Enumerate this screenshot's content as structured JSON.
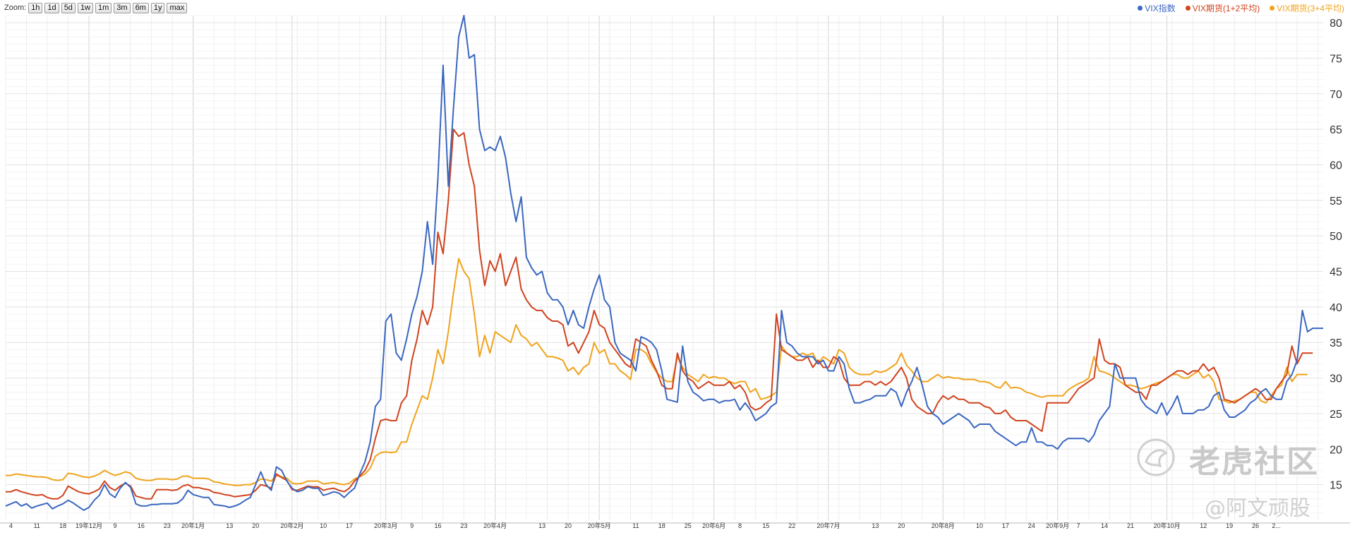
{
  "zoom": {
    "label": "Zoom:",
    "buttons": [
      "1h",
      "1d",
      "5d",
      "1w",
      "1m",
      "3m",
      "6m",
      "1y",
      "max"
    ]
  },
  "watermark": {
    "main": "老虎社区",
    "sub": "@阿文顽股"
  },
  "chart_data": {
    "type": "line",
    "title": "",
    "xlabel": "",
    "ylabel": "",
    "ylim": [
      10,
      81
    ],
    "y_ticks": [
      15,
      20,
      25,
      30,
      35,
      40,
      45,
      50,
      55,
      60,
      65,
      70,
      75,
      80
    ],
    "grid": true,
    "legend_position": "top-right",
    "x_tick_labels": [
      {
        "label": "4",
        "i": 1
      },
      {
        "label": "11",
        "i": 6
      },
      {
        "label": "18",
        "i": 11
      },
      {
        "label": "19年12月",
        "i": 16
      },
      {
        "label": "9",
        "i": 21
      },
      {
        "label": "16",
        "i": 26
      },
      {
        "label": "23",
        "i": 31
      },
      {
        "label": "20年1月",
        "i": 36
      },
      {
        "label": "13",
        "i": 43
      },
      {
        "label": "20",
        "i": 48
      },
      {
        "label": "20年2月",
        "i": 55
      },
      {
        "label": "10",
        "i": 61
      },
      {
        "label": "17",
        "i": 66
      },
      {
        "label": "20年3月",
        "i": 73
      },
      {
        "label": "9",
        "i": 78
      },
      {
        "label": "16",
        "i": 83
      },
      {
        "label": "23",
        "i": 88
      },
      {
        "label": "20年4月",
        "i": 94
      },
      {
        "label": "13",
        "i": 103
      },
      {
        "label": "20",
        "i": 108
      },
      {
        "label": "20年5月",
        "i": 114
      },
      {
        "label": "11",
        "i": 121
      },
      {
        "label": "18",
        "i": 126
      },
      {
        "label": "25",
        "i": 131
      },
      {
        "label": "20年6月",
        "i": 136
      },
      {
        "label": "8",
        "i": 141
      },
      {
        "label": "15",
        "i": 146
      },
      {
        "label": "22",
        "i": 151
      },
      {
        "label": "20年7月",
        "i": 158
      },
      {
        "label": "13",
        "i": 167
      },
      {
        "label": "20",
        "i": 172
      },
      {
        "label": "20年8月",
        "i": 180
      },
      {
        "label": "10",
        "i": 187
      },
      {
        "label": "17",
        "i": 192
      },
      {
        "label": "24",
        "i": 197
      },
      {
        "label": "20年9月",
        "i": 202
      },
      {
        "label": "7",
        "i": 206
      },
      {
        "label": "14",
        "i": 211
      },
      {
        "label": "21",
        "i": 216
      },
      {
        "label": "20年10月",
        "i": 223
      },
      {
        "label": "12",
        "i": 230
      },
      {
        "label": "19",
        "i": 235
      },
      {
        "label": "26",
        "i": 240
      },
      {
        "label": "2...",
        "i": 244
      }
    ],
    "series": [
      {
        "name": "VIX指数",
        "color": "#3a67c0",
        "values": [
          12,
          12.3,
          12.6,
          12,
          12.3,
          11.7,
          12,
          12.2,
          12.4,
          11.6,
          12,
          12.3,
          12.8,
          12.4,
          11.9,
          11.4,
          11.8,
          12.8,
          13.5,
          15,
          13.7,
          13.2,
          14.5,
          15.3,
          14.6,
          12.3,
          12,
          12,
          12.2,
          12.2,
          12.3,
          12.3,
          12.3,
          12.4,
          13,
          14.2,
          13.6,
          13.4,
          13.2,
          13.2,
          12.2,
          12.1,
          12,
          11.8,
          12,
          12.3,
          12.8,
          13.2,
          15,
          16.8,
          15,
          14.2,
          17.5,
          17,
          15.5,
          14.5,
          14,
          14.2,
          14.7,
          14.5,
          14.5,
          13.5,
          13.7,
          14,
          13.8,
          13.2,
          13.9,
          14.5,
          16.5,
          18.2,
          21,
          26,
          27,
          38,
          39,
          33.5,
          32.5,
          35.5,
          39,
          41.5,
          45,
          52,
          46,
          58,
          74,
          57,
          68,
          78,
          81,
          75,
          75.5,
          65,
          62,
          62.5,
          62,
          64,
          61,
          56,
          52,
          55.5,
          47,
          45.5,
          44.5,
          45,
          42,
          41,
          41,
          40,
          37.5,
          39.5,
          37.5,
          37,
          40,
          42.5,
          44.5,
          41,
          40,
          35,
          33.5,
          33,
          32.5,
          31,
          35.8,
          35.5,
          35,
          34,
          31,
          27,
          26.8,
          26.6,
          34.5,
          29.5,
          28,
          27.5,
          26.8,
          27,
          27,
          26.5,
          26.8,
          26.8,
          27,
          25.5,
          26.5,
          25.5,
          24,
          24.5,
          25,
          26,
          26.5,
          39.5,
          35,
          34.5,
          33.5,
          33,
          33,
          33,
          32,
          32.5,
          31,
          31,
          33,
          32,
          28.5,
          26.5,
          26.5,
          26.8,
          27,
          27.5,
          27.5,
          27.5,
          28.5,
          28,
          26,
          28,
          29.5,
          31.5,
          29,
          26,
          25,
          24.5,
          23.5,
          24,
          24.5,
          25,
          24.5,
          24,
          23,
          23.5,
          23.5,
          23.5,
          22.5,
          22,
          21.5,
          21,
          20.5,
          21,
          21,
          23,
          21,
          21,
          20.5,
          20.5,
          20,
          21,
          21.5,
          21.5,
          21.5,
          21.5,
          21,
          22,
          24,
          25,
          26,
          32,
          30,
          30,
          30,
          30,
          27,
          26,
          25.5,
          25,
          26.5,
          24.8,
          26,
          27.5,
          25,
          25,
          25,
          25.5,
          25.5,
          26,
          27.5,
          28,
          25.5,
          24.5,
          24.5,
          25,
          25.5,
          26.5,
          27,
          28,
          28.5,
          27.5,
          27,
          27,
          29.5,
          30.5,
          32.5,
          39.5,
          36.5,
          37,
          37,
          37
        ]
      },
      {
        "name": "VIX期货(1+2平均)",
        "color": "#d0431e",
        "values": [
          14,
          14,
          14.3,
          14,
          13.8,
          13.6,
          13.5,
          13.6,
          13.2,
          13,
          13,
          13.5,
          14.8,
          14.4,
          14,
          13.8,
          13.7,
          14,
          14.4,
          15.5,
          14.6,
          14.2,
          14.8,
          15.2,
          14.8,
          13.4,
          13.2,
          13,
          13,
          14.3,
          14.3,
          14.3,
          14.2,
          14.3,
          14.8,
          15,
          14.6,
          14.6,
          14.4,
          14.3,
          13.9,
          13.8,
          13.6,
          13.5,
          13.3,
          13.4,
          13.5,
          13.6,
          14.2,
          15,
          14.8,
          14.5,
          16.5,
          16,
          15.6,
          14.3,
          14.2,
          14.5,
          14.8,
          14.7,
          14.7,
          14.2,
          14.4,
          14.5,
          14.2,
          14,
          14.5,
          15.5,
          16.2,
          17,
          18.5,
          21.5,
          24,
          24.2,
          24,
          24,
          26.5,
          27.5,
          32.5,
          35.5,
          39.5,
          37.5,
          40,
          50.5,
          47.5,
          55,
          65,
          64,
          64.5,
          60,
          57,
          48,
          43,
          46.5,
          45,
          47.5,
          43,
          45,
          47,
          42.5,
          41,
          40,
          39.5,
          39.5,
          38.5,
          38,
          38,
          37.5,
          34.5,
          35,
          33.5,
          35,
          36.5,
          39.5,
          37.5,
          37,
          35,
          34,
          33,
          32,
          31.5,
          35.5,
          35,
          34.5,
          32.5,
          31,
          29,
          28.5,
          28.5,
          33.5,
          31,
          30,
          29.5,
          28.5,
          29,
          29.5,
          29,
          29,
          29,
          29.5,
          28.5,
          29,
          28,
          26,
          25.5,
          25.8,
          26.5,
          27,
          39,
          34,
          33.5,
          33,
          32.5,
          32.5,
          33,
          31.5,
          32.5,
          31.5,
          31.5,
          33,
          32.5,
          30,
          29,
          29,
          29,
          29.5,
          29.5,
          29,
          29.5,
          29,
          29.5,
          30.5,
          31.5,
          30,
          27,
          26,
          25.5,
          25,
          25,
          26.5,
          27.5,
          27,
          27.5,
          27,
          27,
          26.5,
          26.5,
          26.5,
          26,
          25.8,
          25,
          25,
          25.5,
          24.5,
          24,
          24,
          24,
          23.5,
          23,
          22.5,
          26.5,
          26.5,
          26.5,
          26.5,
          26.5,
          27.5,
          28.5,
          29,
          29.5,
          30,
          35.5,
          32.5,
          32,
          32,
          31.5,
          29,
          28.5,
          28,
          28,
          27,
          29,
          29,
          29.5,
          30,
          30.5,
          31,
          31,
          30.5,
          31,
          31,
          32,
          31,
          31.5,
          30,
          27,
          26.8,
          26.5,
          27,
          27.5,
          28,
          28.5,
          28,
          27,
          27,
          28.5,
          29.5,
          30.5,
          34.5,
          32,
          33.5,
          33.5,
          33.5
        ]
      },
      {
        "name": "VIX期货(3+4平均)",
        "color": "#f0a31c",
        "values": [
          16.3,
          16.3,
          16.5,
          16.4,
          16.3,
          16.2,
          16.1,
          16.1,
          16,
          15.7,
          15.6,
          15.7,
          16.6,
          16.5,
          16.3,
          16.1,
          16,
          16.2,
          16.5,
          17,
          16.6,
          16.3,
          16.5,
          16.8,
          16.6,
          15.9,
          15.7,
          15.6,
          15.6,
          15.8,
          15.8,
          15.8,
          15.7,
          15.8,
          16.2,
          16.2,
          15.9,
          15.9,
          15.9,
          15.8,
          15.4,
          15.3,
          15.1,
          15,
          14.9,
          14.9,
          15,
          15,
          15.3,
          15.8,
          15.7,
          15.5,
          16.3,
          16.1,
          15.9,
          15.2,
          15.1,
          15.2,
          15.5,
          15.5,
          15.5,
          15.1,
          15.2,
          15.3,
          15.1,
          15,
          15.2,
          15.8,
          16.1,
          16.5,
          17.3,
          19,
          19.5,
          19.6,
          19.5,
          19.6,
          21,
          21,
          23.5,
          25.5,
          27.5,
          27,
          30,
          34,
          32,
          36.5,
          42,
          46.8,
          45,
          44,
          39,
          33,
          36,
          33.5,
          36.5,
          36,
          35.5,
          35,
          37.5,
          36,
          35.5,
          34.5,
          35,
          34,
          33,
          33,
          32.8,
          32.5,
          31,
          31.5,
          30.5,
          31.5,
          32,
          35,
          33.5,
          34,
          32,
          32,
          31,
          30.5,
          29.8,
          34,
          34,
          33.5,
          32,
          30.8,
          30,
          29.5,
          29.5,
          33,
          31.5,
          30.5,
          30,
          29.5,
          30.5,
          30,
          30.2,
          30,
          30,
          29.5,
          29.2,
          29.5,
          29.5,
          28,
          28.5,
          27,
          27.2,
          27.5,
          28,
          34.5,
          33.5,
          33,
          33,
          33.5,
          33.2,
          33.5,
          32,
          33,
          32.5,
          32,
          34,
          33.5,
          31.5,
          30.8,
          30.5,
          30.5,
          30.5,
          31,
          30.8,
          31,
          31.5,
          32,
          33.5,
          31.8,
          31,
          30,
          29.5,
          29.5,
          30,
          30.5,
          30,
          30.2,
          30,
          30,
          29.8,
          29.8,
          29.8,
          29.5,
          29.5,
          29.3,
          28.8,
          28.6,
          29.5,
          28.6,
          28.7,
          28.5,
          28,
          27.8,
          27.5,
          27.3,
          27.5,
          27.5,
          27.5,
          27.5,
          28.3,
          28.8,
          29.2,
          29.5,
          30,
          33,
          31,
          30.8,
          30.5,
          30,
          29.5,
          29,
          29,
          28.8,
          28.5,
          28.7,
          29,
          29.3,
          29.5,
          30,
          30.5,
          30.5,
          30,
          30,
          30.5,
          31,
          30,
          30.5,
          29.5,
          27,
          26.8,
          26.5,
          26.8,
          27,
          27.5,
          28,
          28,
          26.8,
          26.5,
          27.5,
          28.5,
          29,
          31.5,
          29.5,
          30.5,
          30.5,
          30.5
        ]
      }
    ]
  }
}
